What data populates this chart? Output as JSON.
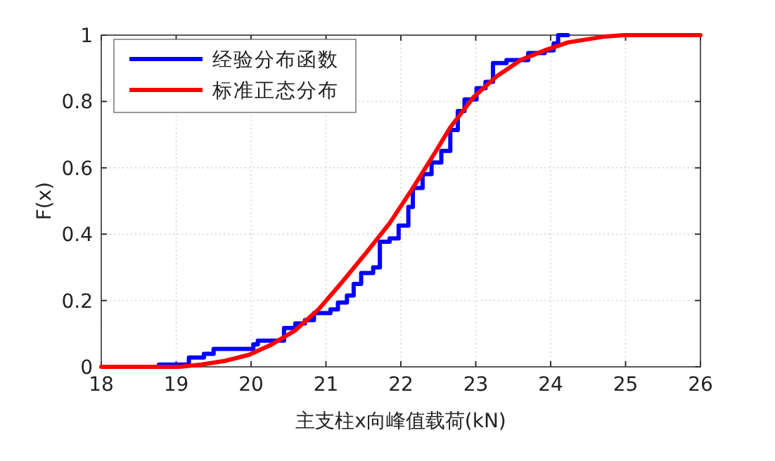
{
  "chart_data": {
    "type": "line",
    "xlabel": "主支柱x向峰值载荷(kN)",
    "ylabel": "F(x)",
    "xlim": [
      18,
      26
    ],
    "ylim": [
      0,
      1
    ],
    "xticks": [
      18,
      19,
      20,
      21,
      22,
      23,
      24,
      25,
      26
    ],
    "yticks": [
      0,
      0.2,
      0.4,
      0.6,
      0.8,
      1
    ],
    "grid": true,
    "legend": "top left",
    "series": [
      {
        "name": "经验分布函数",
        "type": "step",
        "color": "#0000ff",
        "x": [
          18.77,
          19.17,
          19.37,
          19.5,
          20.03,
          20.09,
          20.44,
          20.59,
          20.72,
          20.84,
          21.06,
          21.16,
          21.28,
          21.37,
          21.47,
          21.63,
          21.72,
          21.85,
          21.97,
          22.1,
          22.16,
          22.29,
          22.41,
          22.54,
          22.66,
          22.76,
          22.85,
          23.01,
          23.13,
          23.23,
          23.41,
          23.7,
          23.92,
          24.04,
          24.1,
          24.23
        ],
        "values": [
          0.007,
          0.028,
          0.039,
          0.054,
          0.068,
          0.079,
          0.117,
          0.131,
          0.141,
          0.162,
          0.173,
          0.194,
          0.215,
          0.25,
          0.283,
          0.3,
          0.377,
          0.387,
          0.426,
          0.482,
          0.539,
          0.581,
          0.616,
          0.651,
          0.714,
          0.771,
          0.806,
          0.84,
          0.859,
          0.916,
          0.925,
          0.946,
          0.954,
          0.975,
          1.0,
          1.0
        ]
      },
      {
        "name": "标准正态分布",
        "type": "line",
        "color": "#ff0000",
        "x": [
          18,
          19.04,
          19.34,
          19.65,
          19.97,
          20.28,
          20.59,
          20.9,
          21.22,
          21.53,
          21.85,
          22.16,
          22.47,
          22.66,
          22.97,
          23.28,
          23.6,
          23.92,
          24.23,
          24.73,
          24.98,
          26
        ],
        "values": [
          0,
          0,
          0.007,
          0.018,
          0.036,
          0.068,
          0.11,
          0.173,
          0.257,
          0.342,
          0.433,
          0.539,
          0.651,
          0.722,
          0.813,
          0.876,
          0.925,
          0.954,
          0.978,
          0.996,
          1.0,
          1.0
        ]
      }
    ]
  }
}
